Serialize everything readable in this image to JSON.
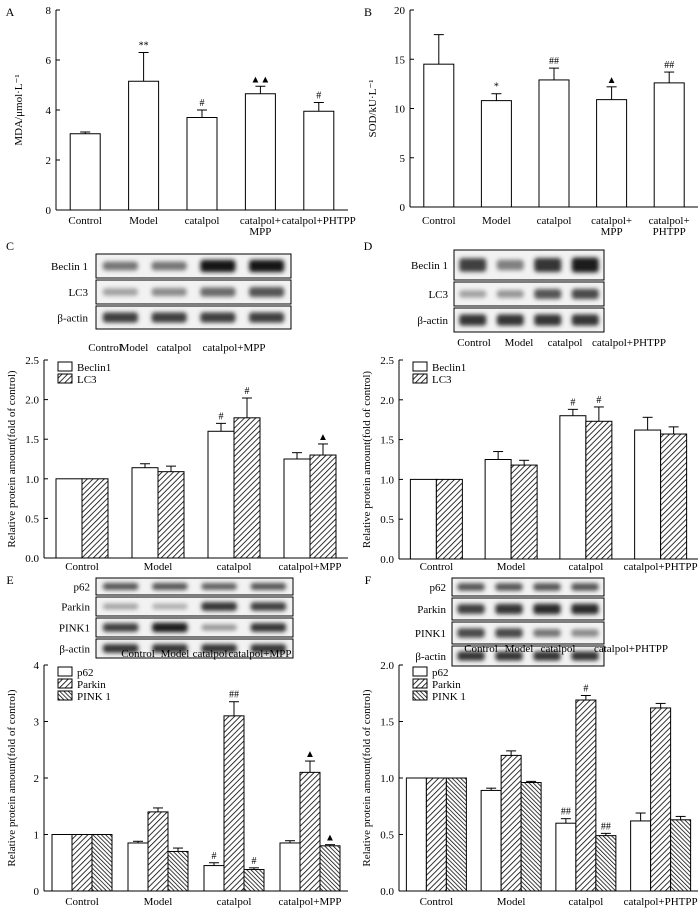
{
  "panels": [
    {
      "letter": "A"
    },
    {
      "letter": "B"
    },
    {
      "letter": "C"
    },
    {
      "letter": "D"
    },
    {
      "letter": "E"
    },
    {
      "letter": "F"
    }
  ],
  "blots": [
    {
      "id": "C",
      "rows": [
        "Beclin 1",
        "LC3",
        "β-actin"
      ],
      "lanes": [
        "Control",
        "Model",
        "catalpol",
        "catalpol+MPP"
      ],
      "intensity": [
        [
          0.55,
          0.55,
          1.0,
          1.0
        ],
        [
          0.35,
          0.45,
          0.6,
          0.7
        ],
        [
          0.8,
          0.8,
          0.8,
          0.8
        ]
      ]
    },
    {
      "id": "D",
      "rows": [
        "Beclin 1",
        "LC3",
        "β-actin"
      ],
      "lanes": [
        "Control",
        "Model",
        "catalpol",
        "catalpol+PHTPP"
      ],
      "intensity": [
        [
          0.8,
          0.5,
          0.85,
          0.95
        ],
        [
          0.35,
          0.4,
          0.7,
          0.75
        ],
        [
          0.85,
          0.85,
          0.85,
          0.85
        ]
      ]
    },
    {
      "id": "E",
      "rows": [
        "p62",
        "Parkin",
        "PINK1",
        "β-actin"
      ],
      "lanes": [
        "Control",
        "Model",
        "catalpol",
        "catalpol+MPP"
      ],
      "intensity": [
        [
          0.7,
          0.7,
          0.65,
          0.7
        ],
        [
          0.35,
          0.3,
          0.85,
          0.8
        ],
        [
          0.8,
          0.95,
          0.4,
          0.85
        ],
        [
          0.85,
          0.85,
          0.85,
          0.85
        ]
      ]
    },
    {
      "id": "F",
      "rows": [
        "p62",
        "Parkin",
        "PINK1",
        "β-actin"
      ],
      "lanes": [
        "Control",
        "Model",
        "catalpol",
        "catalpol+PHTPP"
      ],
      "intensity": [
        [
          0.7,
          0.7,
          0.7,
          0.7
        ],
        [
          0.8,
          0.85,
          0.9,
          0.9
        ],
        [
          0.75,
          0.75,
          0.55,
          0.45
        ],
        [
          0.85,
          0.85,
          0.85,
          0.85
        ]
      ]
    }
  ],
  "chart_data": [
    {
      "id": "A",
      "type": "bar",
      "categories": [
        "Control",
        "Model",
        "catalpol",
        "catalpol+\nMPP",
        "catalpol+PHTPP"
      ],
      "ylabel": "MDA/μmol·L⁻¹",
      "ylim": [
        0,
        8
      ],
      "yticks": [
        0,
        2,
        4,
        6,
        8
      ],
      "series": [
        {
          "values": [
            3.05,
            5.15,
            3.7,
            4.65,
            3.95
          ],
          "errors": [
            0.07,
            1.15,
            0.3,
            0.3,
            0.35
          ],
          "marks": [
            "",
            "**",
            "#",
            "▲▲",
            "#"
          ]
        }
      ]
    },
    {
      "id": "B",
      "type": "bar",
      "categories": [
        "Control",
        "Model",
        "catalpol",
        "catalpol+\nMPP",
        "catalpol+\nPHTPP"
      ],
      "ylabel": "SOD/kU·L⁻¹",
      "ylim": [
        0,
        20
      ],
      "yticks": [
        0,
        5,
        10,
        15,
        20
      ],
      "series": [
        {
          "values": [
            14.5,
            10.8,
            12.9,
            10.9,
            12.6
          ],
          "errors": [
            3.0,
            0.7,
            1.2,
            1.3,
            1.1
          ],
          "marks": [
            "",
            "*",
            "##",
            "▲",
            "##"
          ]
        }
      ]
    },
    {
      "id": "C2",
      "type": "bar",
      "categories": [
        "Control",
        "Model",
        "catalpol",
        "catalpol+MPP"
      ],
      "ylabel": "Relative protein amount(fold of control)",
      "ylim": [
        0,
        2.5
      ],
      "yticks": [
        0.0,
        0.5,
        1.0,
        1.5,
        2.0,
        2.5
      ],
      "legend": "top-left",
      "series": [
        {
          "name": "Beclin1",
          "pattern": "white",
          "values": [
            1.0,
            1.14,
            1.6,
            1.25
          ],
          "errors": [
            0.0,
            0.05,
            0.1,
            0.08
          ],
          "marks": [
            "",
            "",
            "#",
            ""
          ]
        },
        {
          "name": "LC3",
          "pattern": "hatch",
          "values": [
            1.0,
            1.09,
            1.77,
            1.3
          ],
          "errors": [
            0.0,
            0.07,
            0.25,
            0.14
          ],
          "marks": [
            "",
            "",
            "#",
            "▲"
          ]
        }
      ]
    },
    {
      "id": "D2",
      "type": "bar",
      "categories": [
        "Control",
        "Model",
        "catalpol",
        "catalpol+PHTPP"
      ],
      "ylabel": "Relative protein amount(fold of control)",
      "ylim": [
        0,
        2.5
      ],
      "yticks": [
        0.0,
        0.5,
        1.0,
        1.5,
        2.0,
        2.5
      ],
      "legend": "top-left",
      "series": [
        {
          "name": "Beclin1",
          "pattern": "white",
          "values": [
            1.0,
            1.25,
            1.8,
            1.62
          ],
          "errors": [
            0.0,
            0.1,
            0.08,
            0.16
          ],
          "marks": [
            "",
            "",
            "#",
            ""
          ]
        },
        {
          "name": "LC3",
          "pattern": "hatch",
          "values": [
            1.0,
            1.18,
            1.73,
            1.57
          ],
          "errors": [
            0.0,
            0.06,
            0.18,
            0.09
          ],
          "marks": [
            "",
            "",
            "#",
            ""
          ]
        }
      ]
    },
    {
      "id": "E2",
      "type": "bar",
      "categories": [
        "Control",
        "Model",
        "catalpol",
        "catalpol+MPP"
      ],
      "ylabel": "Relative protein amount(fold of control)",
      "ylim": [
        0,
        4
      ],
      "yticks": [
        0,
        1,
        2,
        3,
        4
      ],
      "legend": "top-left",
      "series": [
        {
          "name": "p62",
          "pattern": "white",
          "values": [
            1.0,
            0.85,
            0.45,
            0.85
          ],
          "errors": [
            0.0,
            0.03,
            0.05,
            0.04
          ],
          "marks": [
            "",
            "",
            "#",
            ""
          ]
        },
        {
          "name": "Parkin",
          "pattern": "hatch",
          "values": [
            1.0,
            1.4,
            3.1,
            2.1
          ],
          "errors": [
            0.0,
            0.07,
            0.25,
            0.2
          ],
          "marks": [
            "",
            "",
            "##",
            "▲"
          ]
        },
        {
          "name": "PINK 1",
          "pattern": "dense",
          "values": [
            1.0,
            0.7,
            0.38,
            0.8
          ],
          "errors": [
            0.0,
            0.06,
            0.03,
            0.02
          ],
          "marks": [
            "",
            "",
            "#",
            "▲"
          ]
        }
      ]
    },
    {
      "id": "F2",
      "type": "bar",
      "categories": [
        "Control",
        "Model",
        "catalpol",
        "catalpol+PHTPP"
      ],
      "ylabel": "Relative protein amount(fold of control)",
      "ylim": [
        0,
        2.0
      ],
      "yticks": [
        0.0,
        0.5,
        1.0,
        1.5,
        2.0
      ],
      "legend": "top-left",
      "series": [
        {
          "name": "p62",
          "pattern": "white",
          "values": [
            1.0,
            0.89,
            0.6,
            0.62
          ],
          "errors": [
            0.0,
            0.02,
            0.04,
            0.07
          ],
          "marks": [
            "",
            "",
            "##",
            ""
          ]
        },
        {
          "name": "Parkin",
          "pattern": "hatch",
          "values": [
            1.0,
            1.2,
            1.69,
            1.62
          ],
          "errors": [
            0.0,
            0.04,
            0.04,
            0.04
          ],
          "marks": [
            "",
            "",
            "#",
            ""
          ]
        },
        {
          "name": "PINK 1",
          "pattern": "dense",
          "values": [
            1.0,
            0.96,
            0.49,
            0.63
          ],
          "errors": [
            0.0,
            0.01,
            0.02,
            0.03
          ],
          "marks": [
            "",
            "",
            "##",
            ""
          ]
        }
      ]
    }
  ]
}
